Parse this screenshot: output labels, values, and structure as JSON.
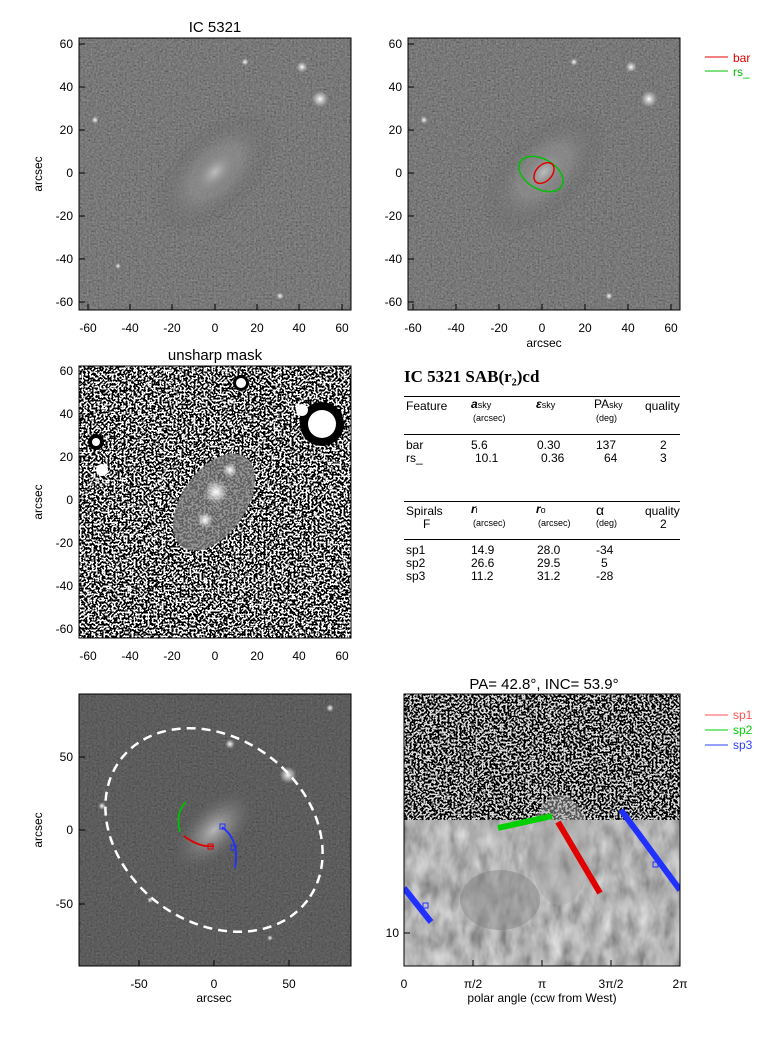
{
  "panels": {
    "top_left": {
      "title": "IC 5321",
      "ylabel": "arcsec",
      "xticks": [
        "-60",
        "-40",
        "-20",
        "0",
        "20",
        "40",
        "60"
      ],
      "yticks": [
        "60",
        "40",
        "20",
        "0",
        "-20",
        "-40",
        "-60"
      ]
    },
    "top_right": {
      "xlabel": "arcsec",
      "xticks": [
        "-60",
        "-40",
        "-20",
        "0",
        "20",
        "40",
        "60"
      ],
      "yticks": [
        "60",
        "40",
        "20",
        "0",
        "-20",
        "-40",
        "-60"
      ],
      "legend": [
        {
          "label": "bar",
          "color": "#e00000"
        },
        {
          "label": "rs_",
          "color": "#00c000"
        }
      ]
    },
    "mid_left": {
      "title": "unsharp mask",
      "ylabel": "arcsec",
      "xticks": [
        "-60",
        "-40",
        "-20",
        "0",
        "20",
        "40",
        "60"
      ],
      "yticks": [
        "60",
        "40",
        "20",
        "0",
        "-20",
        "-40",
        "-60"
      ]
    },
    "bottom_left": {
      "xlabel": "arcsec",
      "ylabel": "arcsec",
      "xticks": [
        "-50",
        "0",
        "50"
      ],
      "yticks": [
        "50",
        "0",
        "-50"
      ]
    },
    "bottom_right": {
      "title": "PA= 42.8°, INC= 53.9°",
      "xlabel": "polar angle (ccw from West)",
      "xticks": [
        "0",
        "π/2",
        "π",
        "3π/2",
        "2π"
      ],
      "ytick": "10",
      "legend": [
        {
          "label": "sp1",
          "color": "#ff5050"
        },
        {
          "label": "sp2",
          "color": "#00d000"
        },
        {
          "label": "sp3",
          "color": "#3040ff"
        }
      ]
    }
  },
  "table": {
    "title": "IC 5321  SAB(r₂)cd",
    "features_header": {
      "feature": "Feature",
      "a": "a",
      "a_sub": "sky",
      "a_unit": "(arcsec)",
      "e": "ε",
      "e_sub": "sky",
      "pa": "PA",
      "pa_sub": "sky",
      "pa_unit": "(deg)",
      "quality": "quality"
    },
    "features": [
      {
        "name": "bar",
        "a": "5.6",
        "e": "0.30",
        "pa": "137",
        "q": "2"
      },
      {
        "name": "rs_",
        "a": "10.1",
        "e": "0.36",
        "pa": "64",
        "q": "3"
      }
    ],
    "spirals_header": {
      "spirals": "Spirals",
      "f": "F",
      "ri": "r",
      "ri_sub": "i",
      "ri_unit": "(arcsec)",
      "ro": "r",
      "ro_sub": "o",
      "ro_unit": "(arcsec)",
      "alpha": "α",
      "alpha_unit": "(deg)",
      "quality": "quality",
      "quality_val": "2"
    },
    "spirals": [
      {
        "name": "sp1",
        "ri": "14.9",
        "ro": "28.0",
        "alpha": "-34"
      },
      {
        "name": "sp2",
        "ri": "26.6",
        "ro": "29.5",
        "alpha": "5"
      },
      {
        "name": "sp3",
        "ri": "11.2",
        "ro": "31.2",
        "alpha": "-28"
      }
    ]
  }
}
